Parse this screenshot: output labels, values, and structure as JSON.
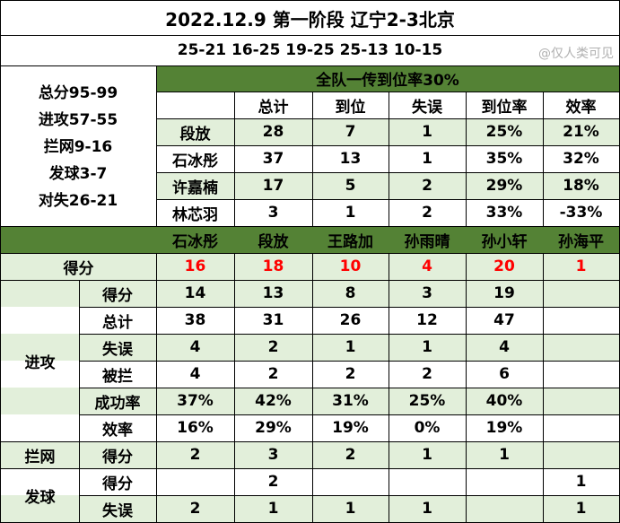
{
  "header": {
    "title": "2022.12.9 第一阶段 辽宁2-3北京",
    "sets": "25-21 16-25 19-25 25-13 10-15",
    "watermark": "@仅人类可见"
  },
  "summary": [
    "总分95-99",
    "进攻57-55",
    "拦网9-16",
    "发球3-7",
    "对失26-21"
  ],
  "pass": {
    "caption": "全队一传到位率30%",
    "headers": [
      "总计",
      "到位",
      "失误",
      "到位率",
      "效率"
    ],
    "rows": [
      {
        "name": "段放",
        "vals": [
          "28",
          "7",
          "1",
          "25%",
          "21%"
        ]
      },
      {
        "name": "石冰彤",
        "vals": [
          "37",
          "13",
          "1",
          "35%",
          "32%"
        ]
      },
      {
        "name": "许嘉楠",
        "vals": [
          "17",
          "5",
          "2",
          "29%",
          "18%"
        ]
      },
      {
        "name": "林芯羽",
        "vals": [
          "3",
          "1",
          "2",
          "33%",
          "-33%"
        ]
      }
    ]
  },
  "players": [
    "石冰彤",
    "段放",
    "王路加",
    "孙雨晴",
    "孙小轩",
    "孙海平"
  ],
  "score": {
    "label": "得分",
    "vals": [
      "16",
      "18",
      "10",
      "4",
      "20",
      "1"
    ]
  },
  "attack": {
    "label": "进攻",
    "rows": [
      {
        "name": "得分",
        "vals": [
          "14",
          "13",
          "8",
          "3",
          "19",
          ""
        ]
      },
      {
        "name": "总计",
        "vals": [
          "38",
          "31",
          "26",
          "12",
          "47",
          ""
        ]
      },
      {
        "name": "失误",
        "vals": [
          "4",
          "2",
          "1",
          "1",
          "4",
          ""
        ]
      },
      {
        "name": "被拦",
        "vals": [
          "4",
          "2",
          "2",
          "2",
          "6",
          ""
        ]
      },
      {
        "name": "成功率",
        "vals": [
          "37%",
          "42%",
          "31%",
          "25%",
          "40%",
          ""
        ]
      },
      {
        "name": "效率",
        "vals": [
          "16%",
          "29%",
          "19%",
          "0%",
          "19%",
          ""
        ]
      }
    ]
  },
  "block": {
    "label": "拦网",
    "rows": [
      {
        "name": "得分",
        "vals": [
          "2",
          "3",
          "2",
          "1",
          "1",
          ""
        ]
      }
    ]
  },
  "serve": {
    "label": "发球",
    "rows": [
      {
        "name": "得分",
        "vals": [
          "",
          "2",
          "",
          "",
          "",
          "1"
        ]
      },
      {
        "name": "失误",
        "vals": [
          "2",
          "1",
          "1",
          "1",
          "",
          "1"
        ]
      }
    ]
  }
}
